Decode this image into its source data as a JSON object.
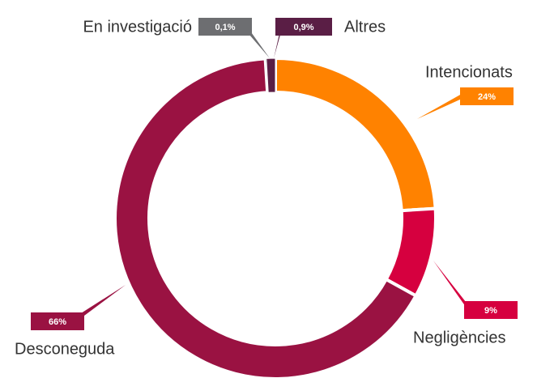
{
  "chart_data": {
    "type": "donut",
    "categories": [
      "Intencionats",
      "Negligències",
      "Desconeguda",
      "En investigació",
      "Altres"
    ],
    "values": [
      24,
      9,
      66,
      0.1,
      0.9
    ],
    "value_labels": [
      "24%",
      "9%",
      "66%",
      "0,1%",
      "0,9%"
    ],
    "colors": [
      "#ff8200",
      "#d6003f",
      "#9a1242",
      "#6d6e71",
      "#5a1e45"
    ]
  }
}
